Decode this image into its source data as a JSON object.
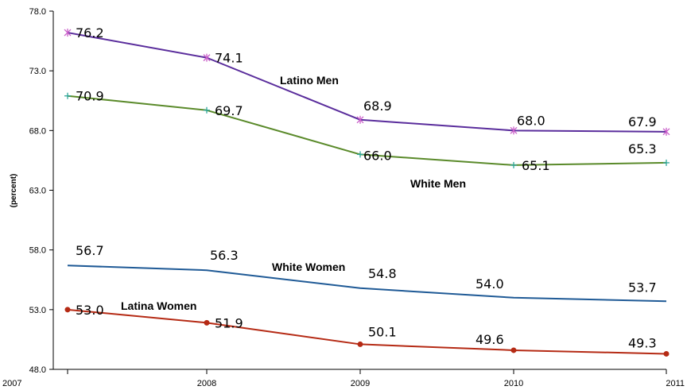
{
  "chart_data": {
    "type": "line",
    "title": "",
    "xlabel": "",
    "ylabel": "(percent)",
    "x": [
      "2007",
      "2008",
      "2009",
      "2010",
      "2011"
    ],
    "yticks": [
      "48.0",
      "53.0",
      "58.0",
      "63.0",
      "68.0",
      "73.0",
      "78.0"
    ],
    "ylim": [
      48,
      78
    ],
    "grid": false,
    "series": [
      {
        "name": "Latino Men",
        "values": [
          76.2,
          74.1,
          68.9,
          68.0,
          67.9
        ],
        "labels": [
          "76.2",
          "74.1",
          "68.9",
          "68.0",
          "67.9"
        ],
        "color": "#5a2d9c",
        "marker": "star"
      },
      {
        "name": "White Men",
        "values": [
          70.9,
          69.7,
          66.0,
          65.1,
          65.3
        ],
        "labels": [
          "70.9",
          "69.7",
          "66.0",
          "65.1",
          "65.3"
        ],
        "color": "#5a8a2a",
        "marker": "plus"
      },
      {
        "name": "White Women",
        "values": [
          56.7,
          56.3,
          54.8,
          54.0,
          53.7
        ],
        "labels": [
          "56.7",
          "56.3",
          "54.8",
          "54.0",
          "53.7"
        ],
        "color": "#1f5a96",
        "marker": "none"
      },
      {
        "name": "Latina Women",
        "values": [
          53.0,
          51.9,
          50.1,
          49.6,
          49.3
        ],
        "labels": [
          "53.0",
          "51.9",
          "50.1",
          "49.6",
          "49.3"
        ],
        "color": "#b52a14",
        "marker": "circle"
      }
    ]
  }
}
